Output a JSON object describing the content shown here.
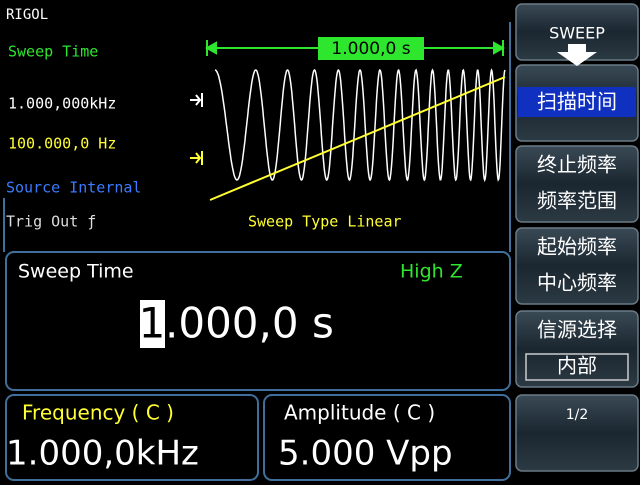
{
  "header": {
    "brand": "RIGOL"
  },
  "waveform": {
    "parameter": "Sweep Time",
    "start_frequency": "1.000,000kHz",
    "stop_frequency": "100.000,0 Hz",
    "source": "Source Internal",
    "trig_out": "Trig Out ƒ",
    "sweep_type": "Sweep Type Linear",
    "time_marker": "1.000,0 s"
  },
  "editor": {
    "label": "Sweep Time",
    "impedance": "High Z",
    "value_cursor": "1",
    "value_rest": ".000,0 s"
  },
  "status": {
    "frequency_label": "Frequency ( C )",
    "frequency_value": "1.000,0kHz",
    "amplitude_label": "Amplitude ( C )",
    "amplitude_value": "5.000 Vpp"
  },
  "softkeys": {
    "menu": "SWEEP",
    "keys": [
      [
        "扫描时间"
      ],
      [
        "终止频率",
        "频率范围"
      ],
      [
        "起始频率",
        "中心频率"
      ],
      [
        "信源选择",
        "内部"
      ],
      [
        "1/2"
      ]
    ]
  }
}
